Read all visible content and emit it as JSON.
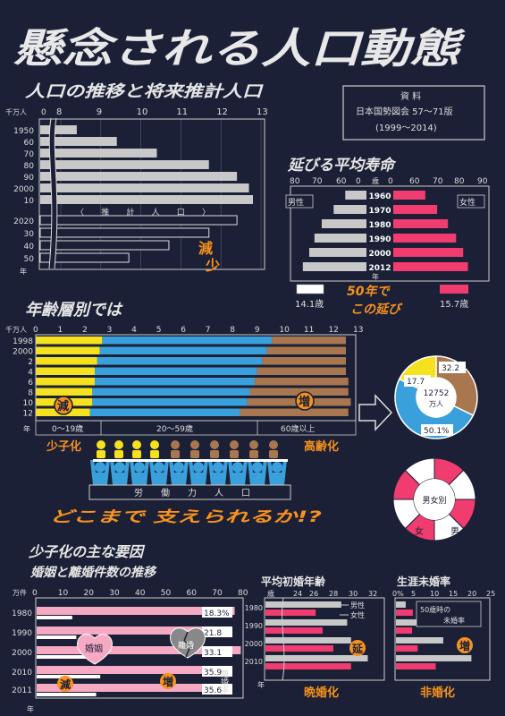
{
  "title": "懸念される人口動態",
  "source": {
    "heading": "資 料",
    "line1": "日本国勢図会 57〜71版",
    "line2": "(1999〜2014)"
  },
  "colors": {
    "background": "#1b2036",
    "gray_bar": "#c8c8c8",
    "pink": "#f03c6e",
    "light_pink": "#f6a9c3",
    "yellow": "#f5e11e",
    "blue": "#3aa0dc",
    "brown": "#a8774f",
    "orange": "#f7921e"
  },
  "population": {
    "title": "人口の推移と将来推計人口",
    "unit": "千万人",
    "year_unit": "年",
    "axis_ticks": [
      "0",
      "8",
      "9",
      "10",
      "11",
      "12",
      "13"
    ],
    "estimate_label": "〈 推 計 人 口 〉",
    "decrease_label_1": "減",
    "decrease_label_2": "少",
    "chart_data": {
      "type": "bar",
      "orientation": "horizontal",
      "axis_break": "0-8",
      "categories": [
        "1950",
        "60",
        "70",
        "80",
        "90",
        "2000",
        "10",
        "2020",
        "30",
        "40",
        "50"
      ],
      "values": [
        8.4,
        9.4,
        10.4,
        11.7,
        12.4,
        12.7,
        12.8,
        12.4,
        11.7,
        10.7,
        9.7
      ],
      "estimated_from_index": 7,
      "xlim": [
        8,
        13
      ]
    }
  },
  "life": {
    "title": "延びる平均寿命",
    "unit": "歳",
    "year_unit": "年",
    "left_ticks": [
      "80",
      "70",
      "60",
      "0"
    ],
    "right_ticks": [
      "0",
      "60",
      "70",
      "80",
      "90"
    ],
    "male_label": "男性",
    "female_label": "女性",
    "male_gain": "14.1歳",
    "female_gain": "15.7歳",
    "callout_1": "50年で",
    "callout_2": "この延び",
    "chart_data": {
      "type": "bar",
      "orientation": "butterfly",
      "categories": [
        "1960",
        "1970",
        "1980",
        "1990",
        "2000",
        "2012"
      ],
      "series": [
        {
          "name": "男性",
          "values": [
            65.3,
            69.3,
            73.4,
            75.9,
            77.7,
            79.9
          ]
        },
        {
          "name": "女性",
          "values": [
            70.2,
            74.7,
            78.8,
            81.9,
            84.6,
            86.4
          ]
        }
      ],
      "xlim": [
        60,
        90
      ]
    }
  },
  "age": {
    "title": "年齢層別では",
    "unit": "千万人",
    "year_unit": "年",
    "axis_ticks": [
      "0",
      "1",
      "2",
      "3",
      "4",
      "5",
      "6",
      "7",
      "8",
      "9",
      "10",
      "11",
      "12",
      "13"
    ],
    "badge_decrease": "減",
    "badge_increase": "増",
    "group_young": "0〜19歳",
    "group_mid": "20〜59歳",
    "group_old": "60歳以上",
    "label_low_birth": "少子化",
    "label_aging": "高齢化",
    "labor_label": "労 働 力 人 口",
    "slogan": "どこまで 支えられるか!?",
    "chart_data": {
      "type": "bar",
      "stacked": true,
      "orientation": "horizontal",
      "categories": [
        "1998",
        "2000",
        "2",
        "4",
        "6",
        "8",
        "10",
        "12"
      ],
      "series": [
        {
          "name": "0〜19歳",
          "values": [
            2.7,
            2.6,
            2.5,
            2.4,
            2.4,
            2.3,
            2.3,
            2.2
          ]
        },
        {
          "name": "20〜59歳",
          "values": [
            6.9,
            6.8,
            6.7,
            6.6,
            6.5,
            6.4,
            6.3,
            6.1
          ]
        },
        {
          "name": "60歳以上",
          "values": [
            3.0,
            3.2,
            3.4,
            3.6,
            3.8,
            4.0,
            4.2,
            4.4
          ]
        }
      ],
      "xlim": [
        0,
        13
      ]
    }
  },
  "donut1": {
    "center_value": "12752",
    "center_unit": "万人",
    "chart_data": {
      "type": "pie",
      "labels": [
        "17.7",
        "32.2",
        "50.1%"
      ],
      "values": [
        17.7,
        32.2,
        50.1
      ],
      "colors": [
        "#f5e11e",
        "#a8774f",
        "#3aa0dc"
      ]
    }
  },
  "donut2": {
    "center_label": "男女別",
    "male_label": "男",
    "female_label": "女",
    "chart_data": {
      "type": "pie",
      "labels": [
        "男",
        "女"
      ],
      "values": [
        48.7,
        51.3
      ]
    }
  },
  "factors": {
    "title": "少子化の主な要因",
    "subtitle": "婚姻と離婚件数の推移",
    "unit": "万件",
    "year_unit": "年",
    "axis_ticks": [
      "0",
      "10",
      "20",
      "30",
      "40",
      "50",
      "60",
      "70",
      "80"
    ],
    "marriage_label": "婚姻",
    "divorce_label": "離婚",
    "divorce_rate_label": "離婚率",
    "badge_decrease": "減",
    "badge_increase": "増",
    "chart_data": {
      "type": "bar",
      "orientation": "horizontal",
      "categories": [
        "1980",
        "1990",
        "2000",
        "2010",
        "2011"
      ],
      "series": [
        {
          "name": "婚姻",
          "values": [
            77.4,
            72.2,
            79.8,
            70.0,
            66.2
          ]
        },
        {
          "name": "離婚",
          "values": [
            14.2,
            15.8,
            26.4,
            25.1,
            23.5
          ]
        }
      ],
      "rate_labels": [
        "18.3%",
        "21.8",
        "33.1",
        "35.9",
        "35.6"
      ],
      "xlim": [
        0,
        80
      ]
    }
  },
  "firstmarriage": {
    "title": "平均初婚年齢",
    "unit": "歳",
    "year_unit": "年",
    "axis_ticks": [
      "0",
      "24",
      "26",
      "28",
      "30",
      "32"
    ],
    "legend_male": "男性",
    "legend_female": "女性",
    "badge": "延",
    "caption": "晩婚化",
    "chart_data": {
      "type": "bar",
      "orientation": "horizontal",
      "categories": [
        "1980",
        "1990",
        "2000",
        "2010"
      ],
      "series": [
        {
          "name": "男性",
          "values": [
            27.8,
            28.4,
            28.8,
            30.5
          ]
        },
        {
          "name": "女性",
          "values": [
            25.2,
            25.9,
            27.0,
            28.8
          ]
        }
      ],
      "xlim": [
        22,
        32
      ]
    }
  },
  "unmarried": {
    "title": "生涯未婚率",
    "axis_ticks": [
      "0%",
      "5",
      "10",
      "15",
      "20",
      "25"
    ],
    "note_1": "50歳時の",
    "note_2": "未婚率",
    "badge": "増",
    "caption": "非婚化",
    "chart_data": {
      "type": "bar",
      "orientation": "horizontal",
      "categories": [
        "1980",
        "1990",
        "2000",
        "2010"
      ],
      "series": [
        {
          "name": "男性",
          "values": [
            2.6,
            5.6,
            12.6,
            20.1
          ]
        },
        {
          "name": "女性",
          "values": [
            4.5,
            4.3,
            5.8,
            10.6
          ]
        }
      ],
      "xlim": [
        0,
        25
      ]
    }
  }
}
